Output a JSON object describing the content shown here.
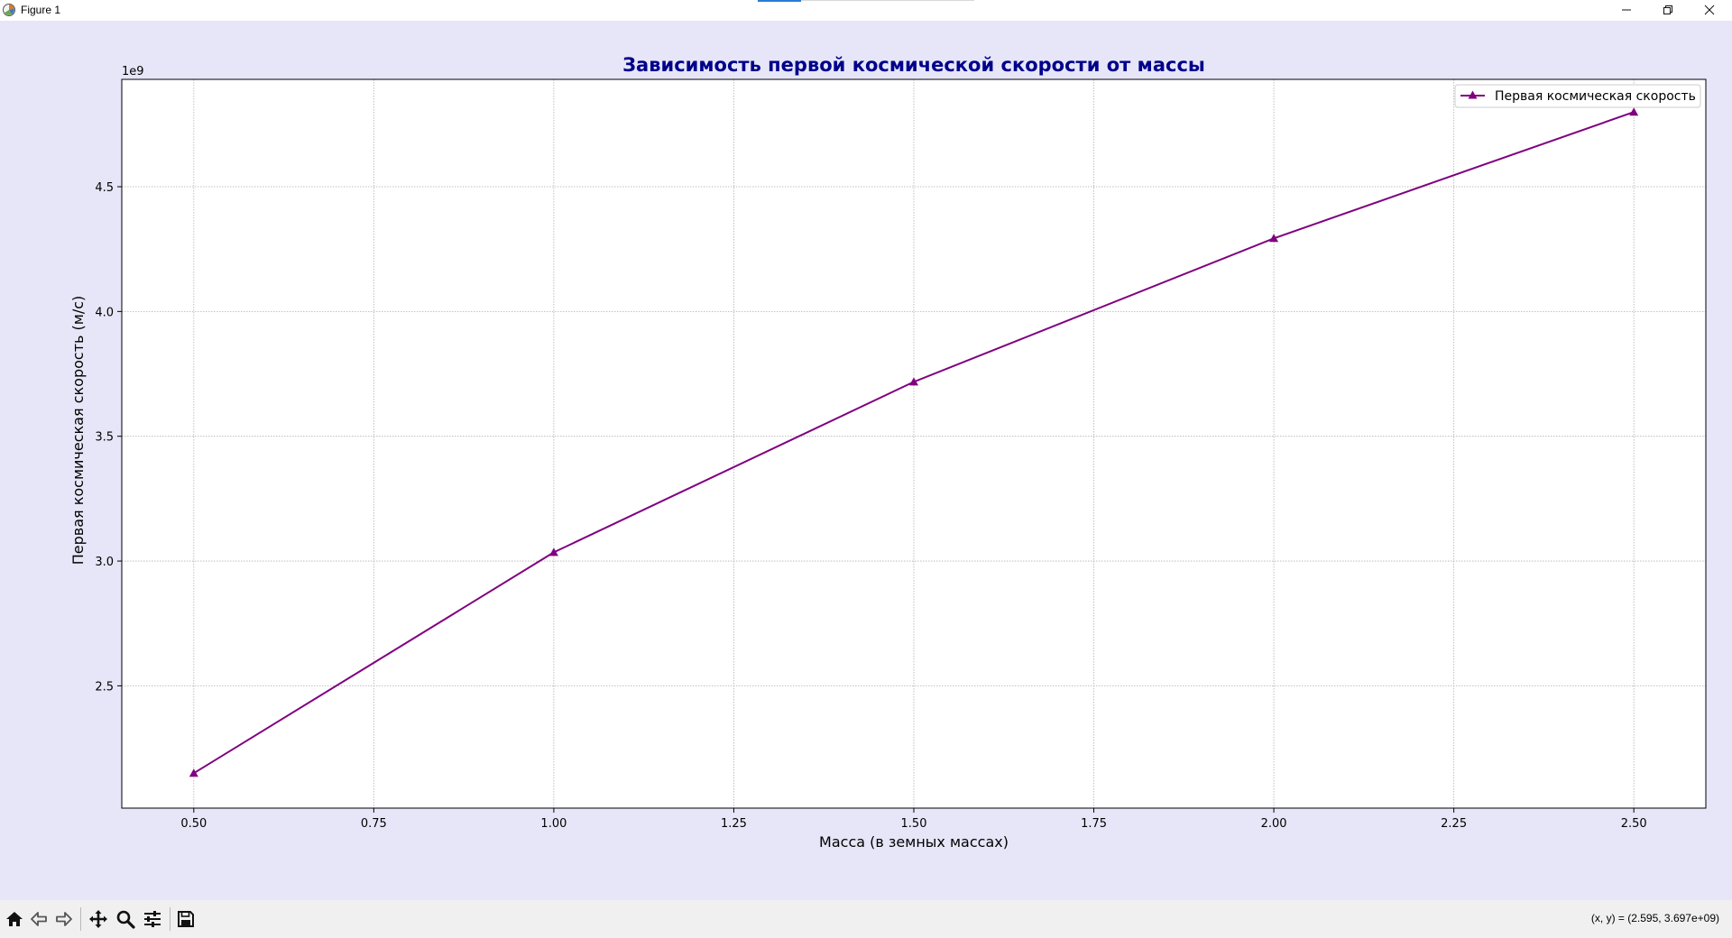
{
  "window": {
    "title": "Figure 1",
    "icons": {
      "app": "matplotlib-icon",
      "minimize": "minimize-icon",
      "restore": "restore-icon",
      "close": "close-icon"
    }
  },
  "colors": {
    "figure_bg": "#e6e6f8",
    "title": "#00008b",
    "series": "#800080"
  },
  "chart_data": {
    "type": "line",
    "title": "Зависимость первой космической скорости от массы",
    "xlabel": "Масса (в земных массах)",
    "ylabel": "Первая космическая скорость (м/с)",
    "y_offset_label": "1e9",
    "x": [
      0.5,
      1.0,
      1.5,
      2.0,
      2.5
    ],
    "series": [
      {
        "name": "Первая космическая скорость",
        "values": [
          2.15,
          3.035,
          3.718,
          4.293,
          4.799
        ],
        "color": "#800080",
        "marker": "triangle"
      }
    ],
    "xlim": [
      0.4,
      2.6
    ],
    "ylim": [
      2.01,
      4.93
    ],
    "xticks": [
      0.5,
      0.75,
      1.0,
      1.25,
      1.5,
      1.75,
      2.0,
      2.25,
      2.5
    ],
    "xtick_labels": [
      "0.50",
      "0.75",
      "1.00",
      "1.25",
      "1.50",
      "1.75",
      "2.00",
      "2.25",
      "2.50"
    ],
    "yticks": [
      2.5,
      3.0,
      3.5,
      4.0,
      4.5
    ],
    "ytick_labels": [
      "2.5",
      "3.0",
      "3.5",
      "4.0",
      "4.5"
    ],
    "grid": true,
    "legend_position": "top-right"
  },
  "toolbar": {
    "icons": [
      "home-icon",
      "back-icon",
      "forward-icon",
      "pan-icon",
      "zoom-icon",
      "configure-subplots-icon",
      "save-icon"
    ],
    "coordinates": "(x, y) = (2.595, 3.697e+09)"
  }
}
